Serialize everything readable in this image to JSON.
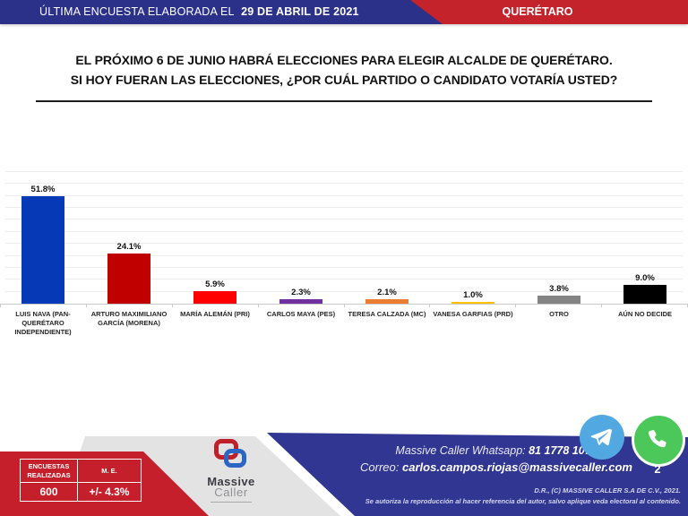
{
  "header": {
    "left_label": "ÚLTIMA ENCUESTA ELABORADA EL",
    "date": "29 DE ABRIL DE 2021",
    "region": "QUERÉTARO"
  },
  "question": {
    "line1": "EL PRÓXIMO 6 DE JUNIO HABRÁ ELECCIONES PARA ELEGIR ALCALDE DE QUERÉTARO.",
    "line2": "SI HOY FUERAN LAS ELECCIONES, ¿POR CUÁL PARTIDO O CANDIDATO VOTARÍA USTED?"
  },
  "chart_data": {
    "type": "bar",
    "categories": [
      "LUIS NAVA (PAN-QUERÉTARO INDEPENDIENTE)",
      "ARTURO MAXIMILIANO GARCÍA (MORENA)",
      "MARÍA ALEMÁN (PRI)",
      "CARLOS MAYA (PES)",
      "TERESA CALZADA (MC)",
      "VANESA GARFIAS (PRD)",
      "OTRO",
      "AÚN NO DECIDE"
    ],
    "values": [
      51.8,
      24.1,
      5.9,
      2.3,
      2.1,
      1.0,
      3.8,
      9.0
    ],
    "labels": [
      "51.8%",
      "24.1%",
      "5.9%",
      "2.3%",
      "2.1%",
      "1.0%",
      "3.8%",
      "9.0%"
    ],
    "bar_colors": [
      "#0539B5",
      "#C00000",
      "#FE0000",
      "#7030A0",
      "#ED7D31",
      "#FFC000",
      "#848484",
      "#000000"
    ],
    "title": "",
    "xlabel": "",
    "ylabel": "",
    "ylim": [
      0,
      63.5
    ],
    "grid": true,
    "legend": false
  },
  "footer": {
    "stats_table": {
      "col1_header": "ENCUESTAS REALIZADAS",
      "col2_header": "M. E.",
      "col1_value": "600",
      "col2_value": "+/- 4.3%"
    },
    "logo": {
      "line1": "Massive",
      "line2": "Caller"
    },
    "contact": {
      "whatsapp_label": "Massive Caller Whatsapp:",
      "whatsapp_number": "81 1778 1079",
      "email_label": "Correo:",
      "email": "carlos.campos.riojas@massivecaller.com"
    },
    "page_number": "2",
    "copyright_line1": "D.R., (C) MASSIVE CALLER S.A DE C.V., 2021.",
    "copyright_line2": "Se autoriza la reproducción al hacer referencia del autor, salvo aplique veda electoral al contenido."
  },
  "colors": {
    "header_blue": "#2B3088",
    "header_red": "#C4232B",
    "footer_blue": "#303692",
    "footer_red": "#C51F2C",
    "footer_gray": "#E3E3E3",
    "telegram_blue": "#52A8E0",
    "whatsapp_green": "#4CC85B"
  }
}
